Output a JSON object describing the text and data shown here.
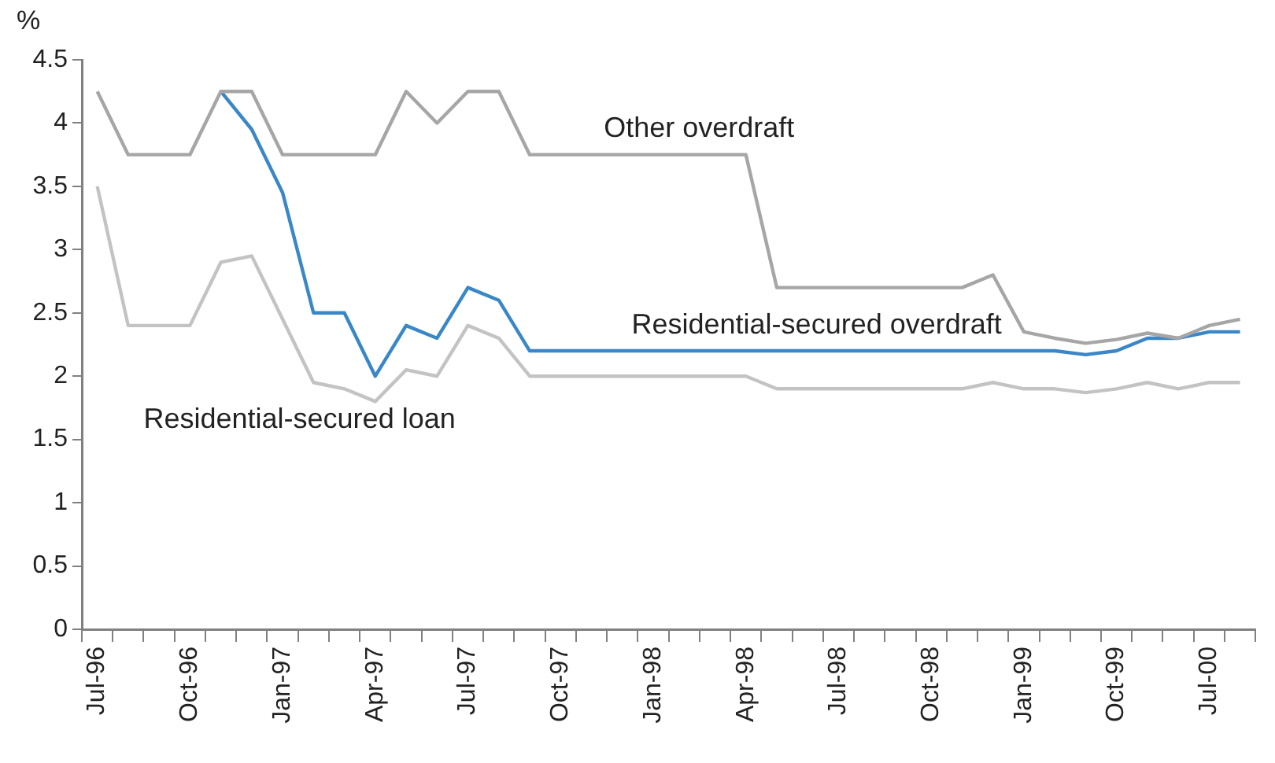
{
  "chart_data": {
    "type": "line",
    "ylabel": "%",
    "categories": [
      "Jul-96",
      null,
      null,
      "Oct-96",
      null,
      null,
      "Jan-97",
      null,
      null,
      "Apr-97",
      null,
      null,
      "Jul-97",
      null,
      null,
      "Oct-97",
      null,
      null,
      "Jan-98",
      null,
      null,
      "Apr-98",
      null,
      null,
      "Jul-98",
      null,
      null,
      "Oct-98",
      null,
      null,
      "Jan-99",
      null,
      null,
      "Oct-99",
      null,
      null,
      "Jul-00",
      null
    ],
    "series": [
      {
        "name": "Other overdraft",
        "color": "#a6a6a6",
        "values": [
          4.25,
          3.75,
          3.75,
          3.75,
          4.25,
          4.25,
          3.75,
          3.75,
          3.75,
          3.75,
          4.25,
          4.0,
          4.25,
          4.25,
          3.75,
          3.75,
          3.75,
          3.75,
          3.75,
          3.75,
          3.75,
          3.75,
          2.7,
          2.7,
          2.7,
          2.7,
          2.7,
          2.7,
          2.7,
          2.8,
          2.35,
          2.3,
          2.26,
          2.29,
          2.34,
          2.3,
          2.4,
          2.45
        ]
      },
      {
        "name": "Residential-secured overdraft",
        "color": "#3a87c8",
        "values": [
          null,
          null,
          null,
          null,
          4.25,
          3.95,
          3.45,
          2.5,
          2.5,
          2.0,
          2.4,
          2.3,
          2.7,
          2.6,
          2.2,
          2.2,
          2.2,
          2.2,
          2.2,
          2.2,
          2.2,
          2.2,
          2.2,
          2.2,
          2.2,
          2.2,
          2.2,
          2.2,
          2.2,
          2.2,
          2.2,
          2.2,
          2.17,
          2.2,
          2.3,
          2.3,
          2.35,
          2.35
        ]
      },
      {
        "name": "Residential-secured loan",
        "color": "#c3c3c3",
        "values": [
          3.5,
          2.4,
          2.4,
          2.4,
          2.9,
          2.95,
          2.45,
          1.95,
          1.9,
          1.8,
          2.05,
          2.0,
          2.4,
          2.3,
          2.0,
          2.0,
          2.0,
          2.0,
          2.0,
          2.0,
          2.0,
          2.0,
          1.9,
          1.9,
          1.9,
          1.9,
          1.9,
          1.9,
          1.9,
          1.95,
          1.9,
          1.9,
          1.87,
          1.9,
          1.95,
          1.9,
          1.95,
          1.95
        ]
      }
    ],
    "ylim": [
      0,
      4.5
    ],
    "yticks": [
      0,
      0.5,
      1,
      1.5,
      2,
      2.5,
      3,
      3.5,
      4,
      4.5
    ],
    "legend": false,
    "marker": "none",
    "line_style": "solid"
  }
}
